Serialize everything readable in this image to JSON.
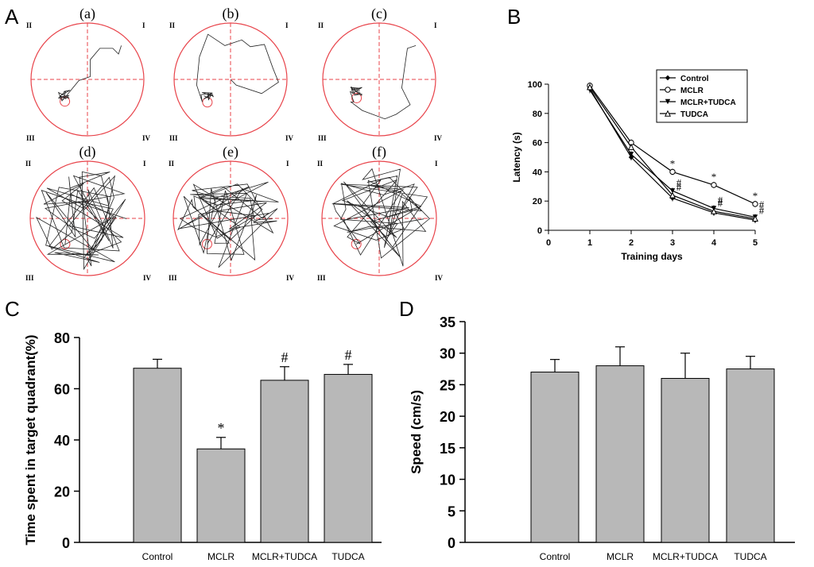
{
  "panels": {
    "A": {
      "letter": "A",
      "mazes": [
        {
          "label": "(a)",
          "q1": "I",
          "q2": "II",
          "q3": "III",
          "q4": "IV"
        },
        {
          "label": "(b)",
          "q1": "I",
          "q2": "II",
          "q3": "III",
          "q4": "IV"
        },
        {
          "label": "(c)",
          "q1": "I",
          "q2": "II",
          "q3": "III",
          "q4": "IV"
        },
        {
          "label": "(d)",
          "q1": "I",
          "q2": "II",
          "q3": "III",
          "q4": "IV"
        },
        {
          "label": "(e)",
          "q1": "I",
          "q2": "II",
          "q3": "III",
          "q4": "IV"
        },
        {
          "label": "(f)",
          "q1": "I",
          "q2": "II",
          "q3": "III",
          "q4": "IV"
        }
      ],
      "colors": {
        "pool": "#e8434a",
        "path": "#222222"
      }
    },
    "B": {
      "letter": "B"
    },
    "C": {
      "letter": "C"
    },
    "D": {
      "letter": "D"
    }
  },
  "chart_data": [
    {
      "type": "line",
      "panel": "B",
      "title": "",
      "xlabel": "Training days",
      "ylabel": "Latency (s)",
      "xlim": [
        0,
        5
      ],
      "ylim": [
        0,
        100
      ],
      "xticks": [
        0,
        1,
        2,
        3,
        4,
        5
      ],
      "yticks": [
        0,
        20,
        40,
        60,
        80,
        100
      ],
      "legend_position": "top-right",
      "x": [
        1,
        2,
        3,
        4,
        5
      ],
      "series": [
        {
          "name": "Control",
          "values": [
            97,
            50,
            22,
            12,
            7
          ],
          "marker": "filled-diamond"
        },
        {
          "name": "MCLR",
          "values": [
            99,
            60,
            40,
            31,
            18
          ],
          "marker": "open-circle"
        },
        {
          "name": "MCLR+TUDCA",
          "values": [
            96,
            52,
            27,
            15,
            9
          ],
          "marker": "filled-triangle"
        },
        {
          "name": "TUDCA",
          "values": [
            98,
            57,
            24,
            13,
            8
          ],
          "marker": "open-triangle"
        }
      ],
      "annotations": [
        {
          "x": 3,
          "y": 40,
          "text": "*"
        },
        {
          "x": 4,
          "y": 31,
          "text": "*"
        },
        {
          "x": 5,
          "y": 18,
          "text": "*"
        },
        {
          "x": 3,
          "y": 27,
          "text": "#"
        },
        {
          "x": 3,
          "y": 24,
          "text": "#"
        },
        {
          "x": 4,
          "y": 15,
          "text": "#"
        },
        {
          "x": 4,
          "y": 13,
          "text": "#"
        },
        {
          "x": 5,
          "y": 12,
          "text": "#"
        },
        {
          "x": 5,
          "y": 8,
          "text": "#"
        }
      ]
    },
    {
      "type": "bar",
      "panel": "C",
      "title": "",
      "xlabel": "",
      "ylabel": "Time spent in target quadrant(%)",
      "ylim": [
        0,
        80
      ],
      "yticks": [
        0,
        20,
        40,
        60,
        80
      ],
      "categories": [
        "Control",
        "MCLR",
        "MCLR+TUDCA",
        "TUDCA"
      ],
      "values": [
        68,
        36.5,
        63.3,
        65.6
      ],
      "errors": [
        3.5,
        4.5,
        5.3,
        3.9
      ],
      "marks": [
        "",
        "*",
        "#",
        "#"
      ],
      "bar_color": "#b8b8b8"
    },
    {
      "type": "bar",
      "panel": "D",
      "title": "",
      "xlabel": "",
      "ylabel": "Speed (cm/s)",
      "ylim": [
        0,
        35
      ],
      "yticks": [
        0,
        5,
        10,
        15,
        20,
        25,
        30,
        35
      ],
      "categories": [
        "Control",
        "MCLR",
        "MCLR+TUDCA",
        "TUDCA"
      ],
      "values": [
        27,
        28,
        26,
        27.5
      ],
      "errors": [
        2,
        3,
        4,
        2
      ],
      "marks": [
        "",
        "",
        "",
        ""
      ],
      "bar_color": "#b8b8b8"
    }
  ]
}
